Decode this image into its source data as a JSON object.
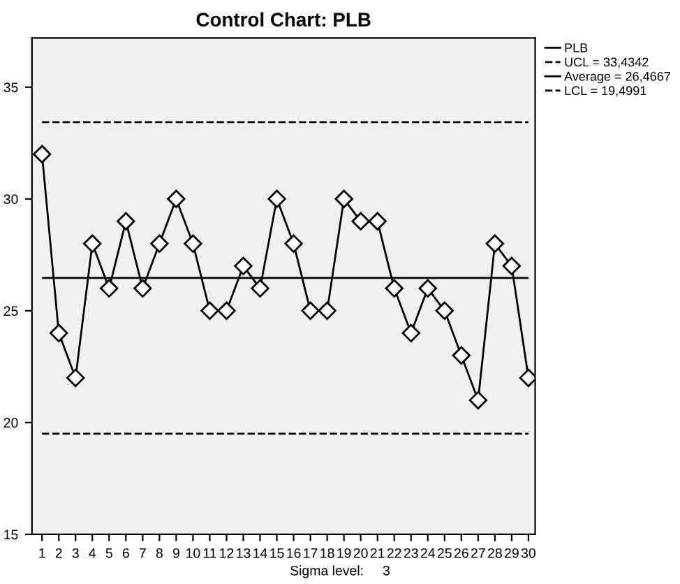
{
  "chart_data": {
    "type": "line",
    "title": "Control Chart: PLB",
    "categories": [
      "1",
      "2",
      "3",
      "4",
      "5",
      "6",
      "7",
      "8",
      "9",
      "10",
      "11",
      "12",
      "13",
      "14",
      "15",
      "16",
      "17",
      "18",
      "19",
      "20",
      "21",
      "22",
      "23",
      "24",
      "25",
      "26",
      "27",
      "28",
      "29",
      "30"
    ],
    "series": [
      {
        "name": "PLB",
        "color": "#000000",
        "values": [
          32,
          24,
          22,
          28,
          26,
          29,
          26,
          28,
          30,
          28,
          25,
          25,
          27,
          26,
          30,
          28,
          25,
          25,
          30,
          29,
          29,
          26,
          24,
          26,
          25,
          23,
          21,
          28,
          27,
          22
        ]
      }
    ],
    "ref_lines": [
      {
        "axis": "y",
        "value": 33.4342,
        "label": "UCL = 33,4342",
        "color": "#000000",
        "line_style": "dashed"
      },
      {
        "axis": "y",
        "value": 26.4667,
        "label": "Average = 26,4667",
        "color": "#000000",
        "line_style": "solid"
      },
      {
        "axis": "y",
        "value": 19.4991,
        "label": "LCL = 19,4991",
        "color": "#000000",
        "line_style": "dashed"
      }
    ],
    "ylim": [
      15,
      37.2
    ],
    "yticks": [
      15,
      20,
      25,
      30,
      35
    ],
    "marker": "diamond",
    "line_style": "solid",
    "grid": false,
    "legend": "top right",
    "annotations": [
      "Sigma level:     3"
    ]
  }
}
